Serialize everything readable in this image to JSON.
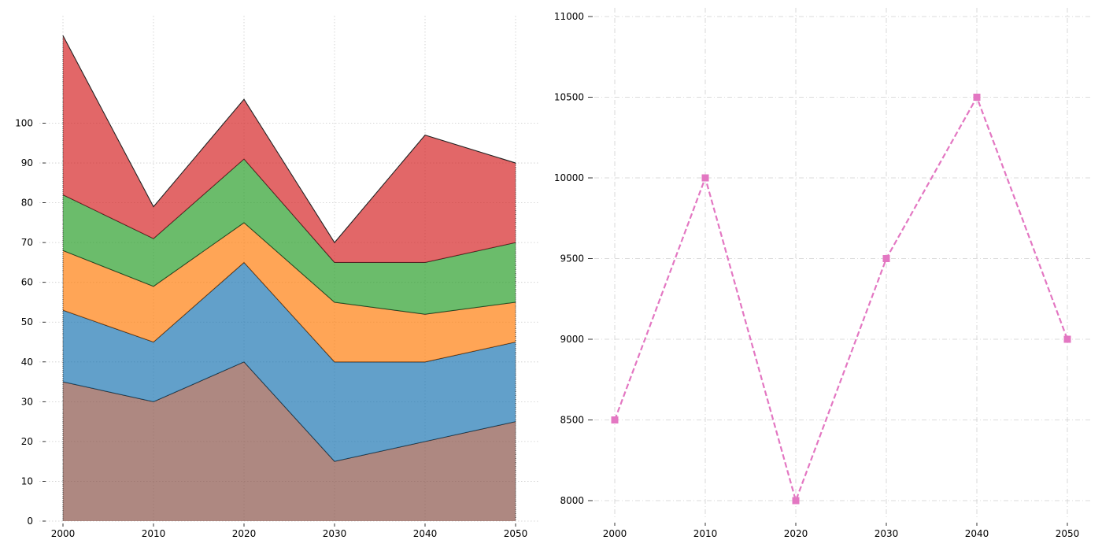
{
  "chart_data": [
    {
      "type": "area",
      "stacked": true,
      "x": [
        2000,
        2010,
        2020,
        2030,
        2040,
        2050
      ],
      "series": [
        {
          "color": "#8c564b",
          "values": [
            35,
            30,
            40,
            15,
            20,
            25
          ]
        },
        {
          "color": "#1f77b4",
          "values": [
            18,
            15,
            25,
            25,
            20,
            20
          ]
        },
        {
          "color": "#ff7f0e",
          "values": [
            15,
            14,
            10,
            15,
            12,
            10
          ]
        },
        {
          "color": "#2ca02c",
          "values": [
            14,
            12,
            16,
            10,
            13,
            15
          ]
        },
        {
          "color": "#d62728",
          "values": [
            40,
            8,
            15,
            5,
            32,
            20
          ]
        }
      ],
      "xticks": [
        "2000",
        "2010",
        "2020",
        "2030",
        "2040",
        "2050"
      ],
      "yticks": [
        "0",
        "10",
        "20",
        "30",
        "40",
        "50",
        "60",
        "70",
        "80",
        "90",
        "100"
      ],
      "xlim": [
        2000,
        2050
      ],
      "ylim": [
        0,
        127
      ],
      "grid": "dotted",
      "title": "",
      "xlabel": "",
      "ylabel": ""
    },
    {
      "type": "line",
      "x": [
        2000,
        2010,
        2020,
        2030,
        2040,
        2050
      ],
      "series": [
        {
          "color": "#e377c2",
          "values": [
            8500,
            10000,
            8000,
            9500,
            10500,
            9000
          ],
          "linestyle": "dashed",
          "marker": "square"
        }
      ],
      "xticks": [
        "2000",
        "2010",
        "2020",
        "2030",
        "2040",
        "2050"
      ],
      "yticks": [
        "8000",
        "8500",
        "9000",
        "9500",
        "10000",
        "10500",
        "11000"
      ],
      "xlim": [
        1995,
        2052.5
      ],
      "ylim": [
        7850,
        11000
      ],
      "grid": "dash-dot",
      "title": "",
      "xlabel": "",
      "ylabel": ""
    }
  ]
}
